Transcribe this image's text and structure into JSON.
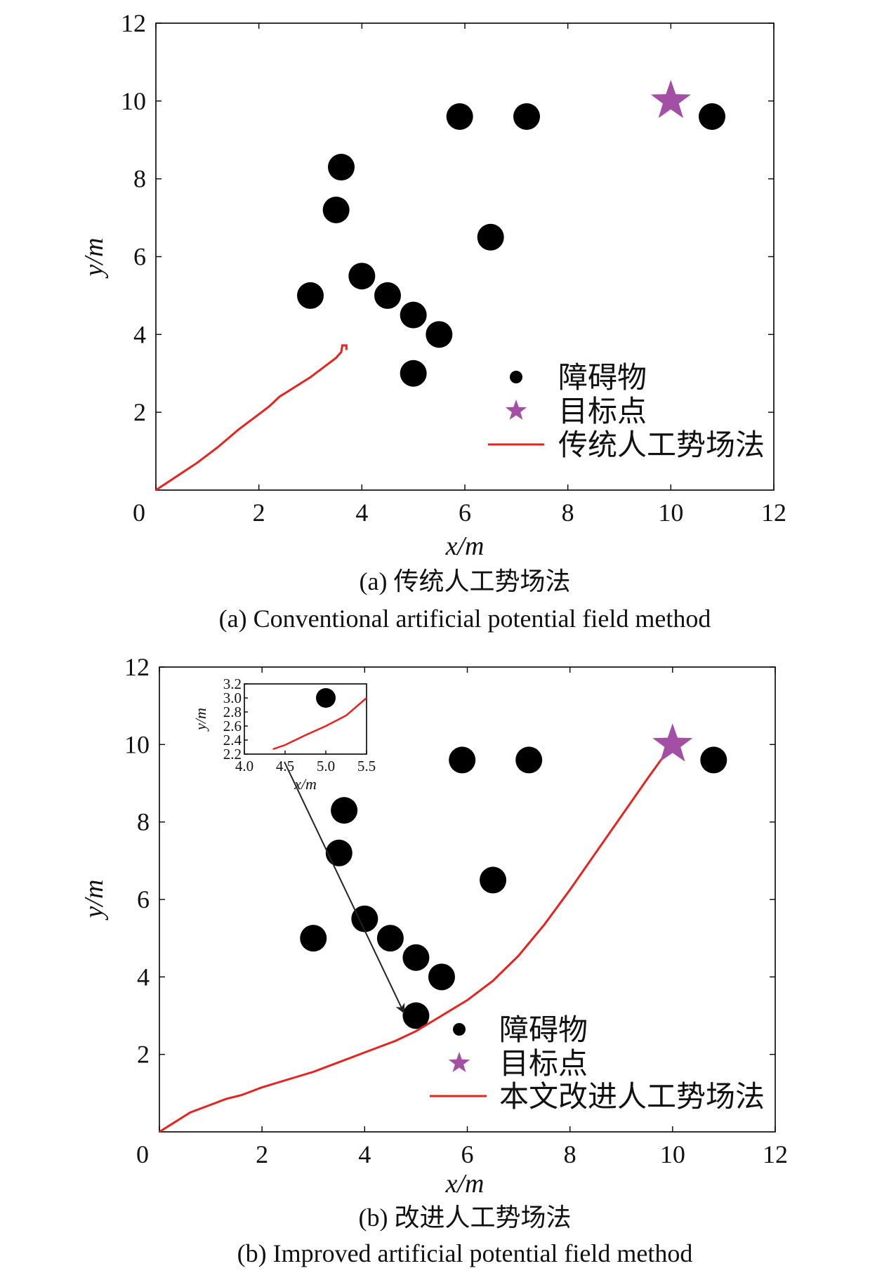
{
  "chart_data": [
    {
      "type": "scatter",
      "caption_cn": "(a) 传统人工势场法",
      "caption_en": "(a) Conventional artificial potential field method",
      "xlabel": "x/m",
      "ylabel": "y/m",
      "xlim": [
        0,
        12
      ],
      "ylim": [
        0,
        12
      ],
      "xticks": [
        "0",
        "2",
        "4",
        "6",
        "8",
        "10",
        "12"
      ],
      "yticks": [
        "2",
        "4",
        "6",
        "8",
        "10",
        "12"
      ],
      "obstacles": [
        [
          3.0,
          5.0
        ],
        [
          3.5,
          7.2
        ],
        [
          3.6,
          8.3
        ],
        [
          4.0,
          5.5
        ],
        [
          4.5,
          5.0
        ],
        [
          5.0,
          4.5
        ],
        [
          5.0,
          3.0
        ],
        [
          5.5,
          4.0
        ],
        [
          5.9,
          9.6
        ],
        [
          6.5,
          6.5
        ],
        [
          7.2,
          9.6
        ],
        [
          10.8,
          9.6
        ]
      ],
      "goal": [
        10.0,
        10.0
      ],
      "path": [
        [
          0.0,
          0.0
        ],
        [
          0.4,
          0.35
        ],
        [
          0.8,
          0.7
        ],
        [
          1.2,
          1.1
        ],
        [
          1.6,
          1.55
        ],
        [
          2.0,
          1.95
        ],
        [
          2.2,
          2.15
        ],
        [
          2.4,
          2.4
        ],
        [
          2.7,
          2.65
        ],
        [
          3.0,
          2.9
        ],
        [
          3.3,
          3.2
        ],
        [
          3.5,
          3.4
        ],
        [
          3.6,
          3.55
        ],
        [
          3.62,
          3.72
        ],
        [
          3.7,
          3.72
        ],
        [
          3.7,
          3.6
        ]
      ],
      "legend": [
        {
          "label": "障碍物",
          "color": "#000000",
          "marker": "circle"
        },
        {
          "label": "目标点",
          "color": "#a44fa6",
          "marker": "star"
        },
        {
          "label": "传统人工势场法",
          "color": "#e8231f",
          "marker": "line"
        }
      ]
    },
    {
      "type": "scatter",
      "caption_cn": "(b) 改进人工势场法",
      "caption_en": "(b) Improved artificial potential field method",
      "xlabel": "x/m",
      "ylabel": "y/m",
      "xlim": [
        0,
        12
      ],
      "ylim": [
        0,
        12
      ],
      "xticks": [
        "0",
        "2",
        "4",
        "6",
        "8",
        "10",
        "12"
      ],
      "yticks": [
        "2",
        "4",
        "6",
        "8",
        "10",
        "12"
      ],
      "obstacles": [
        [
          3.0,
          5.0
        ],
        [
          3.5,
          7.2
        ],
        [
          3.6,
          8.3
        ],
        [
          4.0,
          5.5
        ],
        [
          4.5,
          5.0
        ],
        [
          5.0,
          4.5
        ],
        [
          5.0,
          3.0
        ],
        [
          5.5,
          4.0
        ],
        [
          5.9,
          9.6
        ],
        [
          6.5,
          6.5
        ],
        [
          7.2,
          9.6
        ],
        [
          10.8,
          9.6
        ]
      ],
      "goal": [
        10.0,
        10.0
      ],
      "path": [
        [
          0.0,
          0.0
        ],
        [
          0.3,
          0.25
        ],
        [
          0.6,
          0.5
        ],
        [
          1.0,
          0.7
        ],
        [
          1.3,
          0.85
        ],
        [
          1.6,
          0.95
        ],
        [
          1.8,
          1.05
        ],
        [
          2.0,
          1.15
        ],
        [
          2.5,
          1.35
        ],
        [
          3.0,
          1.55
        ],
        [
          3.5,
          1.8
        ],
        [
          4.0,
          2.05
        ],
        [
          4.6,
          2.35
        ],
        [
          5.0,
          2.6
        ],
        [
          5.5,
          3.0
        ],
        [
          6.0,
          3.4
        ],
        [
          6.5,
          3.9
        ],
        [
          7.0,
          4.55
        ],
        [
          7.5,
          5.35
        ],
        [
          8.0,
          6.25
        ],
        [
          8.5,
          7.2
        ],
        [
          9.0,
          8.15
        ],
        [
          9.5,
          9.1
        ],
        [
          9.8,
          9.65
        ],
        [
          10.0,
          10.0
        ]
      ],
      "inset": {
        "xlabel": "x/m",
        "ylabel": "y/m",
        "xlim": [
          4.0,
          5.5
        ],
        "ylim": [
          2.2,
          3.2
        ],
        "xticks": [
          "4.0",
          "4.5",
          "5.0",
          "5.5"
        ],
        "yticks": [
          "2.2",
          "2.4",
          "2.6",
          "2.8",
          "3.0",
          "3.2"
        ],
        "obstacle": [
          5.0,
          3.0
        ],
        "path": [
          [
            4.35,
            2.27
          ],
          [
            4.5,
            2.33
          ],
          [
            4.75,
            2.47
          ],
          [
            5.0,
            2.6
          ],
          [
            5.25,
            2.75
          ],
          [
            5.5,
            3.0
          ]
        ]
      },
      "legend": [
        {
          "label": "障碍物",
          "color": "#000000",
          "marker": "circle"
        },
        {
          "label": "目标点",
          "color": "#a44fa6",
          "marker": "star"
        },
        {
          "label": "本文改进人工势场法",
          "color": "#e8231f",
          "marker": "line"
        }
      ]
    }
  ]
}
